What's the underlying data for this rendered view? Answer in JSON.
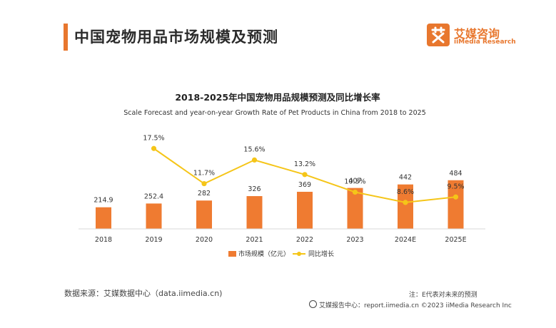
{
  "header": {
    "title": "中国宠物用品市场规模及预测",
    "brand_cn": "艾媒咨询",
    "brand_en": "iiMedia Research",
    "brand_color": "#e8772e"
  },
  "chart_data": {
    "type": "bar",
    "title": "2018-2025年中国宠物用品规模预测及同比增长率",
    "subtitle": "Scale Forecast and year-on-year Growth Rate of Pet Products in China from 2018 to 2025",
    "categories": [
      "2018",
      "2019",
      "2020",
      "2021",
      "2022",
      "2023",
      "2024E",
      "2025E"
    ],
    "series": [
      {
        "name": "市场规模（亿元）",
        "type": "bar",
        "color": "#ef7b31",
        "values": [
          214.9,
          252.4,
          282,
          326,
          369,
          407,
          442,
          484
        ],
        "labels": [
          "214.9",
          "252.4",
          "282",
          "326",
          "369",
          "407",
          "442",
          "484"
        ]
      },
      {
        "name": "同比增长",
        "type": "line",
        "color": "#f5c518",
        "values": [
          null,
          17.5,
          11.7,
          15.6,
          13.2,
          10.3,
          8.6,
          9.5
        ],
        "labels": [
          "",
          "17.5%",
          "11.7%",
          "15.6%",
          "13.2%",
          "10.3%",
          "8.6%",
          "9.5%"
        ]
      }
    ],
    "grid": false,
    "legend_position": "bottom"
  },
  "footer": {
    "source": "数据来源：艾媒数据中心（data.iimedia.cn)",
    "note": "注：E代表对未来的预测",
    "copyright": "艾媒报告中心：report.iimedia.cn  ©2023  iiMedia Research  Inc"
  }
}
